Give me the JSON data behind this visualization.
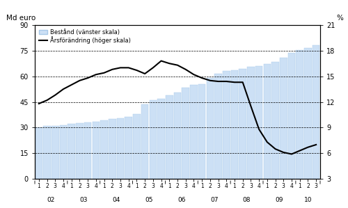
{
  "ylabel_left": "Md euro",
  "ylabel_right": "%",
  "ylim_left": [
    0,
    90
  ],
  "ylim_right": [
    3,
    21
  ],
  "yticks_left": [
    0,
    15,
    30,
    45,
    60,
    75,
    90
  ],
  "yticks_right": [
    3,
    6,
    9,
    12,
    15,
    18,
    21
  ],
  "bar_color": "#cce0f5",
  "bar_edge_color": "#a8c8e8",
  "line_color": "#000000",
  "legend_bar_label": "Bestånd (vänster skala)",
  "legend_line_label": "Årsförändring (höger skala)",
  "quarters": [
    "1",
    "2",
    "3",
    "4",
    "1",
    "2",
    "3",
    "4",
    "1",
    "2",
    "3",
    "4",
    "1",
    "2",
    "3",
    "4",
    "1",
    "2",
    "3",
    "4",
    "1",
    "2",
    "3",
    "4",
    "1",
    "2",
    "3",
    "4",
    "1",
    "2",
    "3",
    "4",
    "1",
    "2",
    "3"
  ],
  "years": [
    "02",
    "02",
    "02",
    "02",
    "03",
    "03",
    "03",
    "03",
    "04",
    "04",
    "04",
    "04",
    "05",
    "05",
    "05",
    "05",
    "06",
    "06",
    "06",
    "06",
    "07",
    "07",
    "07",
    "07",
    "08",
    "08",
    "08",
    "08",
    "09",
    "09",
    "09",
    "09",
    "10",
    "10",
    "10"
  ],
  "bar_values": [
    30.0,
    30.8,
    31.0,
    31.5,
    32.2,
    32.5,
    33.0,
    33.5,
    34.2,
    35.0,
    35.5,
    36.2,
    38.0,
    43.5,
    46.0,
    47.0,
    49.0,
    50.5,
    53.5,
    55.0,
    55.5,
    59.0,
    61.5,
    63.0,
    63.5,
    64.5,
    65.5,
    66.0,
    67.0,
    68.5,
    71.0,
    73.5,
    75.5,
    76.5,
    78.0
  ],
  "line_values": [
    11.8,
    12.2,
    12.8,
    13.5,
    14.0,
    14.5,
    14.8,
    15.2,
    15.4,
    15.8,
    16.0,
    16.0,
    15.7,
    15.3,
    16.0,
    16.8,
    16.5,
    16.3,
    15.8,
    15.2,
    14.8,
    14.5,
    14.4,
    14.4,
    14.3,
    14.3,
    11.5,
    8.8,
    7.3,
    6.5,
    6.1,
    5.9,
    6.3,
    6.7,
    7.0
  ],
  "grid_color": "#000000",
  "grid_linestyle": "--",
  "grid_linewidth": 0.5,
  "background_color": "#ffffff"
}
